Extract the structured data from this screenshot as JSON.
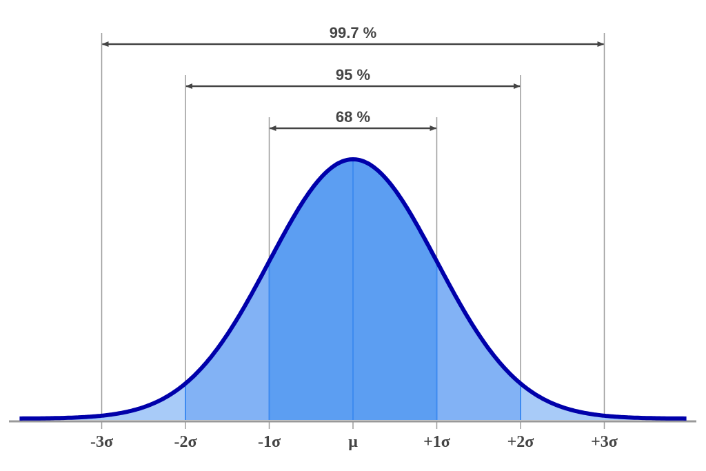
{
  "chart_data": {
    "type": "area",
    "title": "",
    "description": "Normal distribution curve with standard deviation bands",
    "xlabel": "",
    "ylabel": "",
    "x_range_sigma": [
      -4,
      4
    ],
    "tick_labels": [
      "-3σ",
      "-2σ",
      "-1σ",
      "μ",
      "+1σ",
      "+2σ",
      "+3σ"
    ],
    "tick_positions_sigma": [
      -3,
      -2,
      -1,
      0,
      1,
      2,
      3
    ],
    "intervals": [
      {
        "label": "68%",
        "from": -1,
        "to": 1,
        "value": 68
      },
      {
        "label": "95%",
        "from": -2,
        "to": 2,
        "value": 95
      },
      {
        "label": "99.7%",
        "from": -3,
        "to": 3,
        "value": 99.7
      }
    ],
    "series": [
      {
        "name": "normal pdf",
        "mean": 0,
        "sd": 1
      }
    ],
    "grid": false,
    "legend": null
  },
  "colors": {
    "curve": "#0000aa",
    "fill_center": "#5c9ef2",
    "fill_mid": "#82b2f5",
    "fill_outer": "#a8cbf8",
    "band_line": "#3d8af0",
    "guide_line": "#9a9a9a",
    "axis": "#999999",
    "text": "#444444"
  }
}
